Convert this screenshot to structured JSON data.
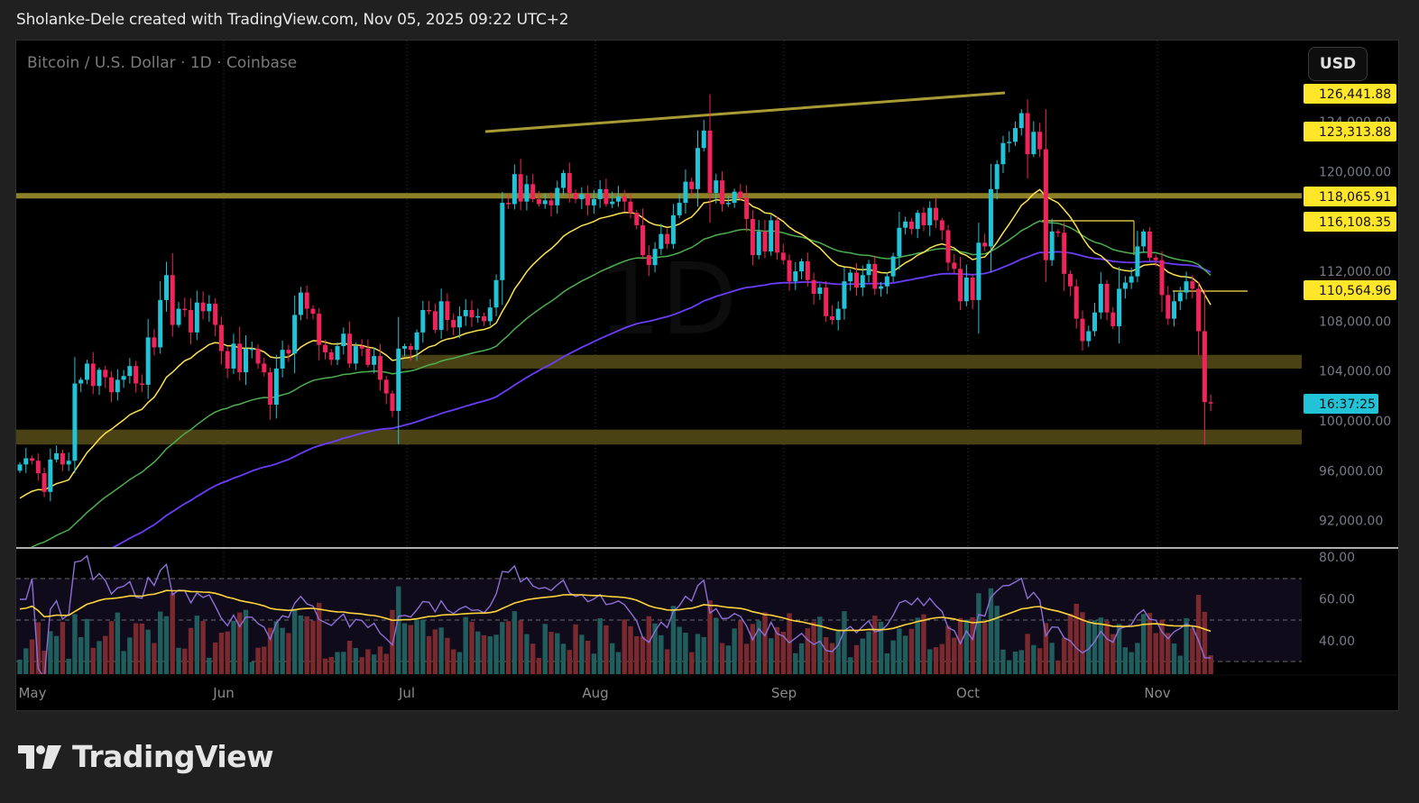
{
  "header": {
    "attribution": "Sholanke-Dele created with TradingView.com, Nov 05, 2025 09:22 UTC+2"
  },
  "chart": {
    "symbol_label": "Bitcoin / U.S. Dollar · 1D · Coinbase",
    "currency_button": "USD",
    "watermark": "1D",
    "colors": {
      "up": "#22c3d6",
      "down": "#f0245a",
      "ema_fast": "#ffe14d",
      "ema_mid": "#4caf50",
      "ema_slow": "#6a3dfa",
      "zone": "#4a4215",
      "resistance_line": "#8d8128",
      "trendline": "#a89a35",
      "tag_yellow": "#ffe629",
      "tag_cyan": "#22c3d6",
      "rsi": "#8c6fd6",
      "rsi_ma": "#ffd43b",
      "vol_up": "#1f5e5c",
      "vol_down": "#7a2a2e"
    }
  },
  "chart_data": {
    "type": "candlestick",
    "title": "Bitcoin / U.S. Dollar · 1D · Coinbase",
    "xlabel": "",
    "ylabel": "USD",
    "x_ticks": [
      "May",
      "Jun",
      "Jul",
      "Aug",
      "Sep",
      "Oct",
      "Nov"
    ],
    "y_ticks": [
      "124,000.00",
      "120,000.00",
      "112,000.00",
      "108,000.00",
      "104,000.00",
      "100,000.00",
      "96,000.00",
      "92,000.00"
    ],
    "ylim": [
      89000,
      128500
    ],
    "price_tags": [
      {
        "label": "126,441.88",
        "value": 126441.88,
        "color": "yellow"
      },
      {
        "label": "123,313.88",
        "value": 123313.88,
        "color": "yellow"
      },
      {
        "label": "118,065.91",
        "value": 118065.91,
        "color": "yellow"
      },
      {
        "label": "116,108.35",
        "value": 116108.35,
        "color": "yellow"
      },
      {
        "label": "110,564.96",
        "value": 110564.96,
        "color": "yellow"
      },
      {
        "label": "16:37:25",
        "value": 101400,
        "color": "cyan"
      }
    ],
    "horizontal_lines": [
      {
        "name": "resistance",
        "value": 118065.91
      },
      {
        "name": "box-top",
        "value": 116108.35
      },
      {
        "name": "level",
        "value": 110564.96
      }
    ],
    "zones": [
      {
        "name": "support-zone-upper",
        "from": 104200,
        "to": 105300
      },
      {
        "name": "support-zone-lower",
        "from": 98100,
        "to": 99300
      }
    ],
    "trendline": {
      "from": {
        "date": "Jul 14",
        "price": 123200
      },
      "to": {
        "date": "Oct 06",
        "price": 126400
      }
    },
    "moving_averages": [
      "EMA fast (yellow)",
      "EMA mid (green)",
      "EMA slow (purple)"
    ],
    "candles_close": [
      96500,
      97000,
      96800,
      95800,
      94300,
      96900,
      97400,
      96500,
      96800,
      103000,
      103300,
      104600,
      102800,
      104100,
      103500,
      102300,
      103300,
      103600,
      104400,
      103000,
      102900,
      106700,
      105900,
      109700,
      111700,
      107700,
      109000,
      108900,
      107100,
      109500,
      108800,
      109400,
      107700,
      105600,
      104200,
      106200,
      103900,
      105800,
      105800,
      104600,
      103900,
      101300,
      104200,
      105700,
      105400,
      108500,
      110300,
      109000,
      108600,
      106100,
      105500,
      104900,
      106000,
      107000,
      104600,
      106000,
      105800,
      104500,
      105200,
      103300,
      102200,
      100800,
      105800,
      106000,
      105700,
      107100,
      108900,
      108800,
      107300,
      109600,
      108100,
      107500,
      108400,
      108900,
      108300,
      108400,
      108000,
      109100,
      111300,
      117500,
      117400,
      119800,
      117600,
      119000,
      117800,
      117400,
      117700,
      117300,
      118700,
      119900,
      118300,
      117800,
      118200,
      117300,
      117800,
      118600,
      117400,
      117600,
      118000,
      117600,
      116700,
      115700,
      113300,
      112500,
      113800,
      115000,
      114200,
      116500,
      117500,
      119200,
      118600,
      121900,
      123300,
      118300,
      119300,
      117400,
      117500,
      118400,
      117900,
      116200,
      113300,
      115200,
      113600,
      116100,
      113500,
      112900,
      111200,
      112000,
      112800,
      111300,
      110200,
      110700,
      108400,
      108100,
      109000,
      111200,
      111900,
      110700,
      111700,
      112600,
      110600,
      110800,
      111600,
      113200,
      115500,
      116000,
      115400,
      116700,
      115700,
      117100,
      116100,
      115300,
      112700,
      112200,
      109600,
      111500,
      109700,
      114300,
      114000,
      118600,
      120600,
      122300,
      122400,
      123500,
      124700,
      121400,
      123200,
      121800,
      112900,
      115200,
      115100,
      111800,
      110800,
      108200,
      106400,
      107200,
      108700,
      111000,
      108700,
      107600,
      110600,
      111100,
      111600,
      114000,
      115200,
      113100,
      112900,
      110100,
      108200,
      109600,
      110300,
      111200,
      110600,
      107200,
      101500,
      101400
    ],
    "volume_relative": "histogram bars under RSI pane (teal = up, red = down)",
    "rsi_pane": {
      "y_ticks": [
        "80.00",
        "60.00",
        "40.00"
      ],
      "band": [
        30,
        70
      ],
      "mid": 50,
      "series": [
        "RSI (purple)",
        "RSI MA (yellow)"
      ],
      "last_rsi": 31,
      "last_rsi_ma": 43
    }
  },
  "footer": {
    "logo_text": "TradingView"
  }
}
